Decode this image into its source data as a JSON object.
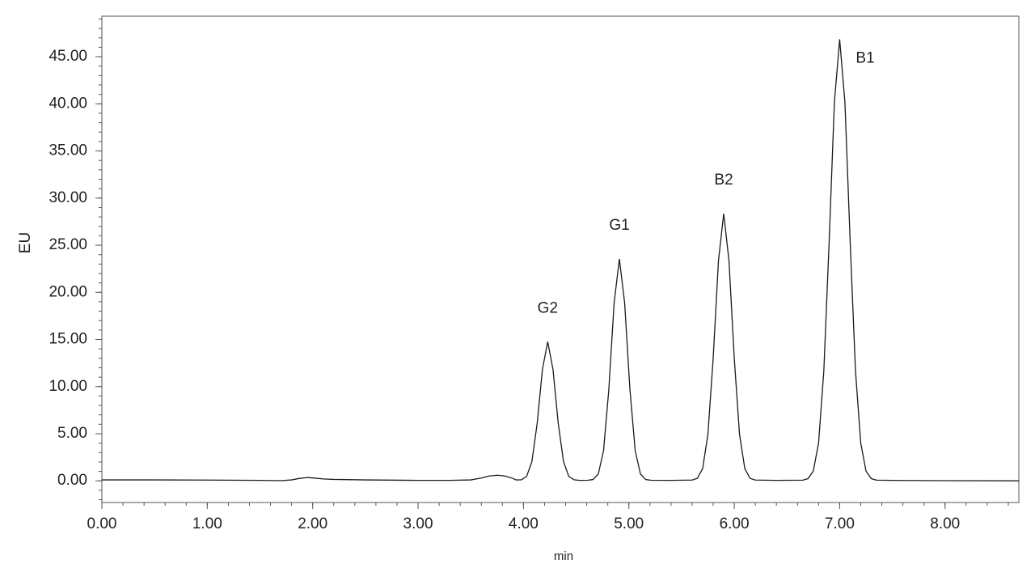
{
  "chart_data": {
    "type": "line",
    "x_label": "min",
    "y_label": "EU",
    "xlim": [
      0,
      8.7
    ],
    "ylim": [
      -2.3,
      49.3
    ],
    "xticks": [
      {
        "value": 0,
        "label": "0.00"
      },
      {
        "value": 1,
        "label": "1.00"
      },
      {
        "value": 2,
        "label": "2.00"
      },
      {
        "value": 3,
        "label": "3.00"
      },
      {
        "value": 4,
        "label": "4.00"
      },
      {
        "value": 5,
        "label": "5.00"
      },
      {
        "value": 6,
        "label": "6.00"
      },
      {
        "value": 7,
        "label": "7.00"
      },
      {
        "value": 8,
        "label": "8.00"
      }
    ],
    "yticks": [
      {
        "value": 0,
        "label": "0.00"
      },
      {
        "value": 5,
        "label": "5.00"
      },
      {
        "value": 10,
        "label": "10.00"
      },
      {
        "value": 15,
        "label": "15.00"
      },
      {
        "value": 20,
        "label": "20.00"
      },
      {
        "value": 25,
        "label": "25.00"
      },
      {
        "value": 30,
        "label": "30.00"
      },
      {
        "value": 35,
        "label": "35.00"
      },
      {
        "value": 40,
        "label": "40.00"
      },
      {
        "value": 45,
        "label": "45.00"
      }
    ],
    "grid": false,
    "x": [
      0,
      0.5,
      1,
      1.5,
      1.7,
      1.8,
      1.87,
      1.95,
      2.03,
      2.1,
      2.2,
      2.5,
      3,
      3.3,
      3.5,
      3.6,
      3.67,
      3.75,
      3.83,
      3.9,
      3.93,
      3.98,
      4.03,
      4.08,
      4.13,
      4.18,
      4.23,
      4.28,
      4.33,
      4.38,
      4.43,
      4.48,
      4.53,
      4.61,
      4.66,
      4.71,
      4.76,
      4.81,
      4.86,
      4.91,
      4.96,
      5.01,
      5.06,
      5.11,
      5.16,
      5.21,
      5.4,
      5.6,
      5.65,
      5.7,
      5.75,
      5.8,
      5.85,
      5.9,
      5.95,
      6.0,
      6.05,
      6.1,
      6.15,
      6.2,
      6.4,
      6.65,
      6.7,
      6.75,
      6.8,
      6.85,
      6.9,
      6.95,
      7.0,
      7.05,
      7.1,
      7.15,
      7.2,
      7.25,
      7.3,
      7.35,
      7.5,
      8.0,
      8.7
    ],
    "series": [
      {
        "color": "#1a1a1a",
        "values": [
          0.1,
          0.1,
          0.08,
          0.05,
          0.02,
          0.1,
          0.25,
          0.35,
          0.28,
          0.2,
          0.15,
          0.1,
          0.05,
          0.05,
          0.1,
          0.3,
          0.5,
          0.6,
          0.5,
          0.25,
          0.1,
          0.11,
          0.47,
          2.04,
          6.09,
          11.83,
          14.75,
          11.83,
          6.09,
          2.04,
          0.47,
          0.11,
          0.05,
          0.06,
          0.14,
          0.72,
          3.22,
          9.71,
          18.87,
          23.55,
          18.87,
          9.71,
          3.22,
          0.72,
          0.14,
          0.06,
          0.05,
          0.08,
          0.27,
          1.3,
          4.92,
          13.01,
          23.34,
          28.35,
          23.34,
          13.01,
          4.92,
          1.3,
          0.27,
          0.08,
          0.05,
          0.07,
          0.23,
          1.04,
          4.01,
          11.7,
          25.28,
          40.16,
          46.85,
          40.16,
          25.28,
          11.7,
          4.01,
          1.04,
          0.23,
          0.07,
          0.05,
          0.02,
          0.0
        ]
      }
    ],
    "annotations": [
      "G2",
      "G1",
      "B2",
      "B1"
    ]
  }
}
